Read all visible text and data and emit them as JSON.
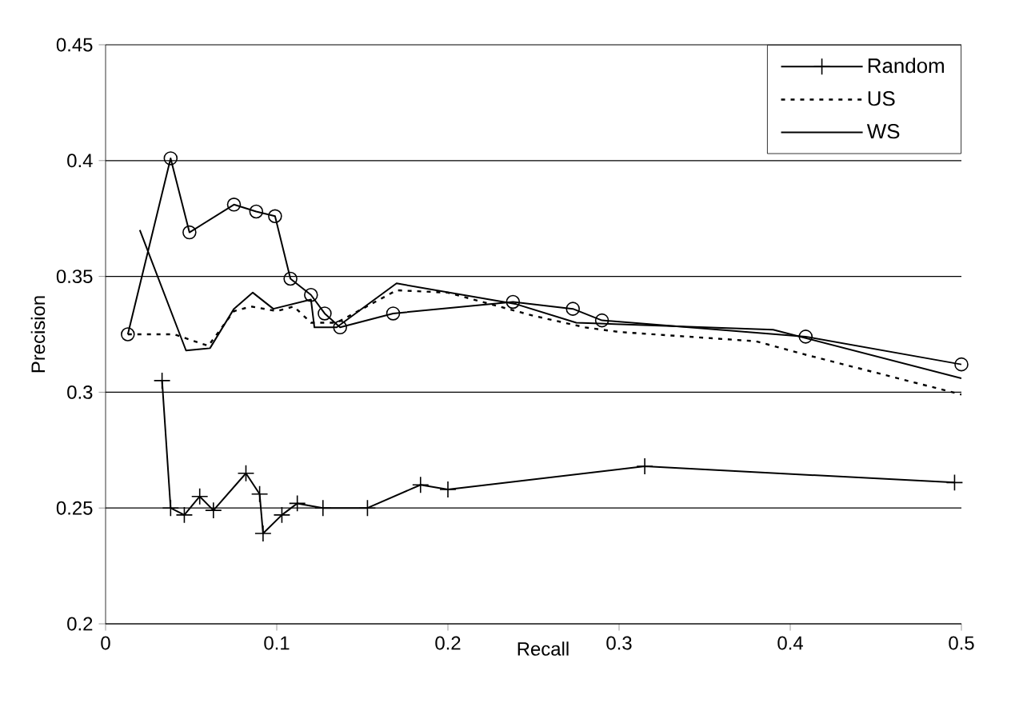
{
  "chart_data": {
    "type": "line",
    "xlabel": "Recall",
    "ylabel": "Precision",
    "xlim": [
      0,
      0.5
    ],
    "xticks": [
      0,
      0.1,
      0.2,
      0.3,
      0.4,
      0.5
    ],
    "ylim": [
      0.2,
      0.45
    ],
    "yticks": [
      0.2,
      0.25,
      0.3,
      0.35,
      0.4,
      0.45
    ],
    "grid": "y",
    "legend": "top right",
    "series": [
      {
        "color": "#000000",
        "marker": "circle",
        "line_style": "solid",
        "x": [
          0.013,
          0.038,
          0.049,
          0.075,
          0.088,
          0.099,
          0.108,
          0.12,
          0.128,
          0.137,
          0.168,
          0.238,
          0.273,
          0.29,
          0.409,
          0.5
        ],
        "values": [
          0.325,
          0.401,
          0.369,
          0.381,
          0.378,
          0.376,
          0.349,
          0.342,
          0.334,
          0.328,
          0.334,
          0.339,
          0.336,
          0.331,
          0.324,
          0.312
        ]
      },
      {
        "name": "Random",
        "color": "#000000",
        "marker": "cross",
        "line_style": "solid",
        "x": [
          0.033,
          0.038,
          0.046,
          0.055,
          0.063,
          0.082,
          0.09,
          0.092,
          0.103,
          0.112,
          0.127,
          0.153,
          0.184,
          0.2,
          0.315,
          0.496
        ],
        "values": [
          0.305,
          0.25,
          0.247,
          0.255,
          0.249,
          0.265,
          0.256,
          0.239,
          0.247,
          0.252,
          0.25,
          0.25,
          0.26,
          0.258,
          0.268,
          0.261
        ]
      },
      {
        "name": "US",
        "color": "#000000",
        "marker": "none",
        "line_style": "dotted",
        "x": [
          0.013,
          0.04,
          0.06,
          0.075,
          0.085,
          0.1,
          0.11,
          0.12,
          0.135,
          0.17,
          0.2,
          0.25,
          0.28,
          0.3,
          0.38,
          0.41,
          0.5
        ],
        "values": [
          0.325,
          0.325,
          0.32,
          0.335,
          0.337,
          0.335,
          0.337,
          0.33,
          0.33,
          0.344,
          0.343,
          0.333,
          0.328,
          0.326,
          0.322,
          0.316,
          0.299
        ]
      },
      {
        "name": "WS",
        "color": "#000000",
        "marker": "none",
        "line_style": "solid",
        "x": [
          0.02,
          0.047,
          0.061,
          0.075,
          0.086,
          0.098,
          0.12,
          0.122,
          0.135,
          0.17,
          0.24,
          0.275,
          0.39,
          0.5
        ],
        "values": [
          0.37,
          0.318,
          0.319,
          0.336,
          0.343,
          0.336,
          0.34,
          0.328,
          0.328,
          0.347,
          0.338,
          0.33,
          0.327,
          0.306
        ]
      }
    ]
  }
}
